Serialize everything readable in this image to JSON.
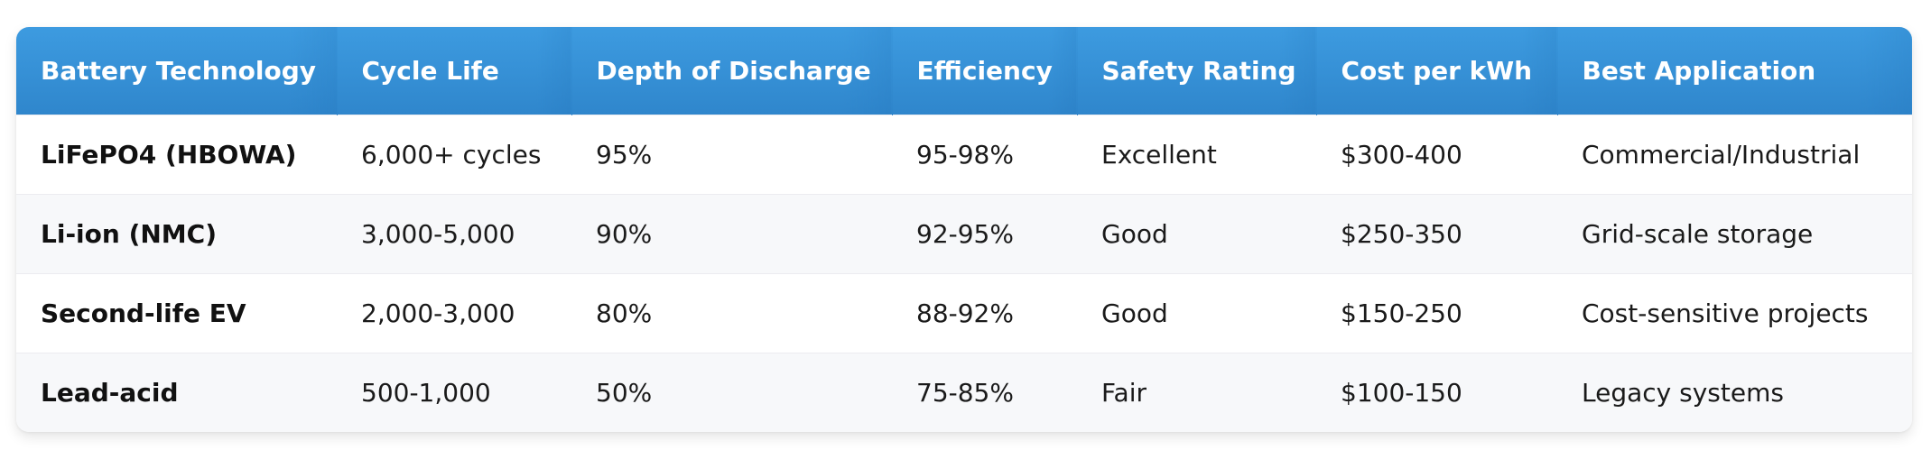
{
  "table": {
    "headers": [
      "Battery Technology",
      "Cycle Life",
      "Depth of Discharge",
      "Efficiency",
      "Safety Rating",
      "Cost per kWh",
      "Best Application"
    ],
    "rows": [
      [
        "LiFePO4 (HBOWA)",
        "6,000+ cycles",
        "95%",
        "95-98%",
        "Excellent",
        "$300-400",
        "Commercial/Industrial"
      ],
      [
        "Li-ion (NMC)",
        "3,000-5,000",
        "90%",
        "92-95%",
        "Good",
        "$250-350",
        "Grid-scale storage"
      ],
      [
        "Second-life EV",
        "2,000-3,000",
        "80%",
        "88-92%",
        "Good",
        "$150-250",
        "Cost-sensitive projects"
      ],
      [
        "Lead-acid",
        "500-1,000",
        "50%",
        "75-85%",
        "Fair",
        "$100-150",
        "Legacy systems"
      ]
    ]
  },
  "colors": {
    "header_start": "#3d9be0",
    "header_end": "#2f86cc",
    "header_text": "#ffffff",
    "row_alt": "#f7f8fa"
  }
}
